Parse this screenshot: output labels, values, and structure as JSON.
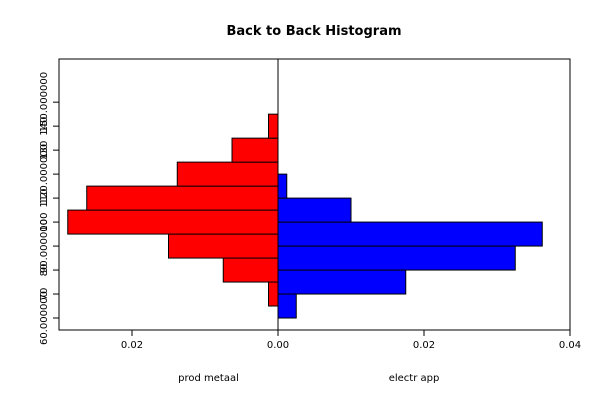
{
  "chart_data": {
    "type": "bar",
    "orientation": "back-to-back-horizontal",
    "title": "Back to Back Histogram",
    "bin_edges": [
      60,
      65,
      70,
      75,
      80,
      85,
      90,
      95,
      100,
      105
    ],
    "y_ticks": [
      60,
      70,
      80,
      90,
      100,
      110,
      120,
      130,
      140,
      150
    ],
    "y_tick_labels": [
      "60.000000",
      "70",
      "80",
      "90.000000",
      "100",
      "110",
      "120.000000",
      "130",
      "140",
      "150.000000"
    ],
    "x_ticks": [
      -0.02,
      0.0,
      0.02,
      0.04
    ],
    "x_tick_labels": [
      "0.02",
      "0.00",
      "0.02",
      "0.04"
    ],
    "xlim": [
      -0.03,
      0.04
    ],
    "ylim": [
      55,
      168
    ],
    "series": [
      {
        "name": "prod metaal",
        "side": "left",
        "color": "#ff0000",
        "bins": [
          {
            "from": 65,
            "to": 75,
            "value": 0.0013
          },
          {
            "from": 75,
            "to": 85,
            "value": 0.0075
          },
          {
            "from": 85,
            "to": 95,
            "value": 0.015
          },
          {
            "from": 95,
            "to": 105,
            "value": 0.0288
          },
          {
            "from": 105,
            "to": 115,
            "value": 0.0262
          },
          {
            "from": 115,
            "to": 125,
            "value": 0.0138
          },
          {
            "from": 125,
            "to": 135,
            "value": 0.0063
          },
          {
            "from": 135,
            "to": 145,
            "value": 0.0013
          }
        ]
      },
      {
        "name": "electr app",
        "side": "right",
        "color": "#0000ff",
        "bins": [
          {
            "from": 60,
            "to": 70,
            "value": 0.0025
          },
          {
            "from": 70,
            "to": 80,
            "value": 0.0175
          },
          {
            "from": 80,
            "to": 90,
            "value": 0.0325
          },
          {
            "from": 90,
            "to": 100,
            "value": 0.0362
          },
          {
            "from": 100,
            "to": 110,
            "value": 0.01
          },
          {
            "from": 110,
            "to": 120,
            "value": 0.0012
          }
        ]
      }
    ]
  }
}
